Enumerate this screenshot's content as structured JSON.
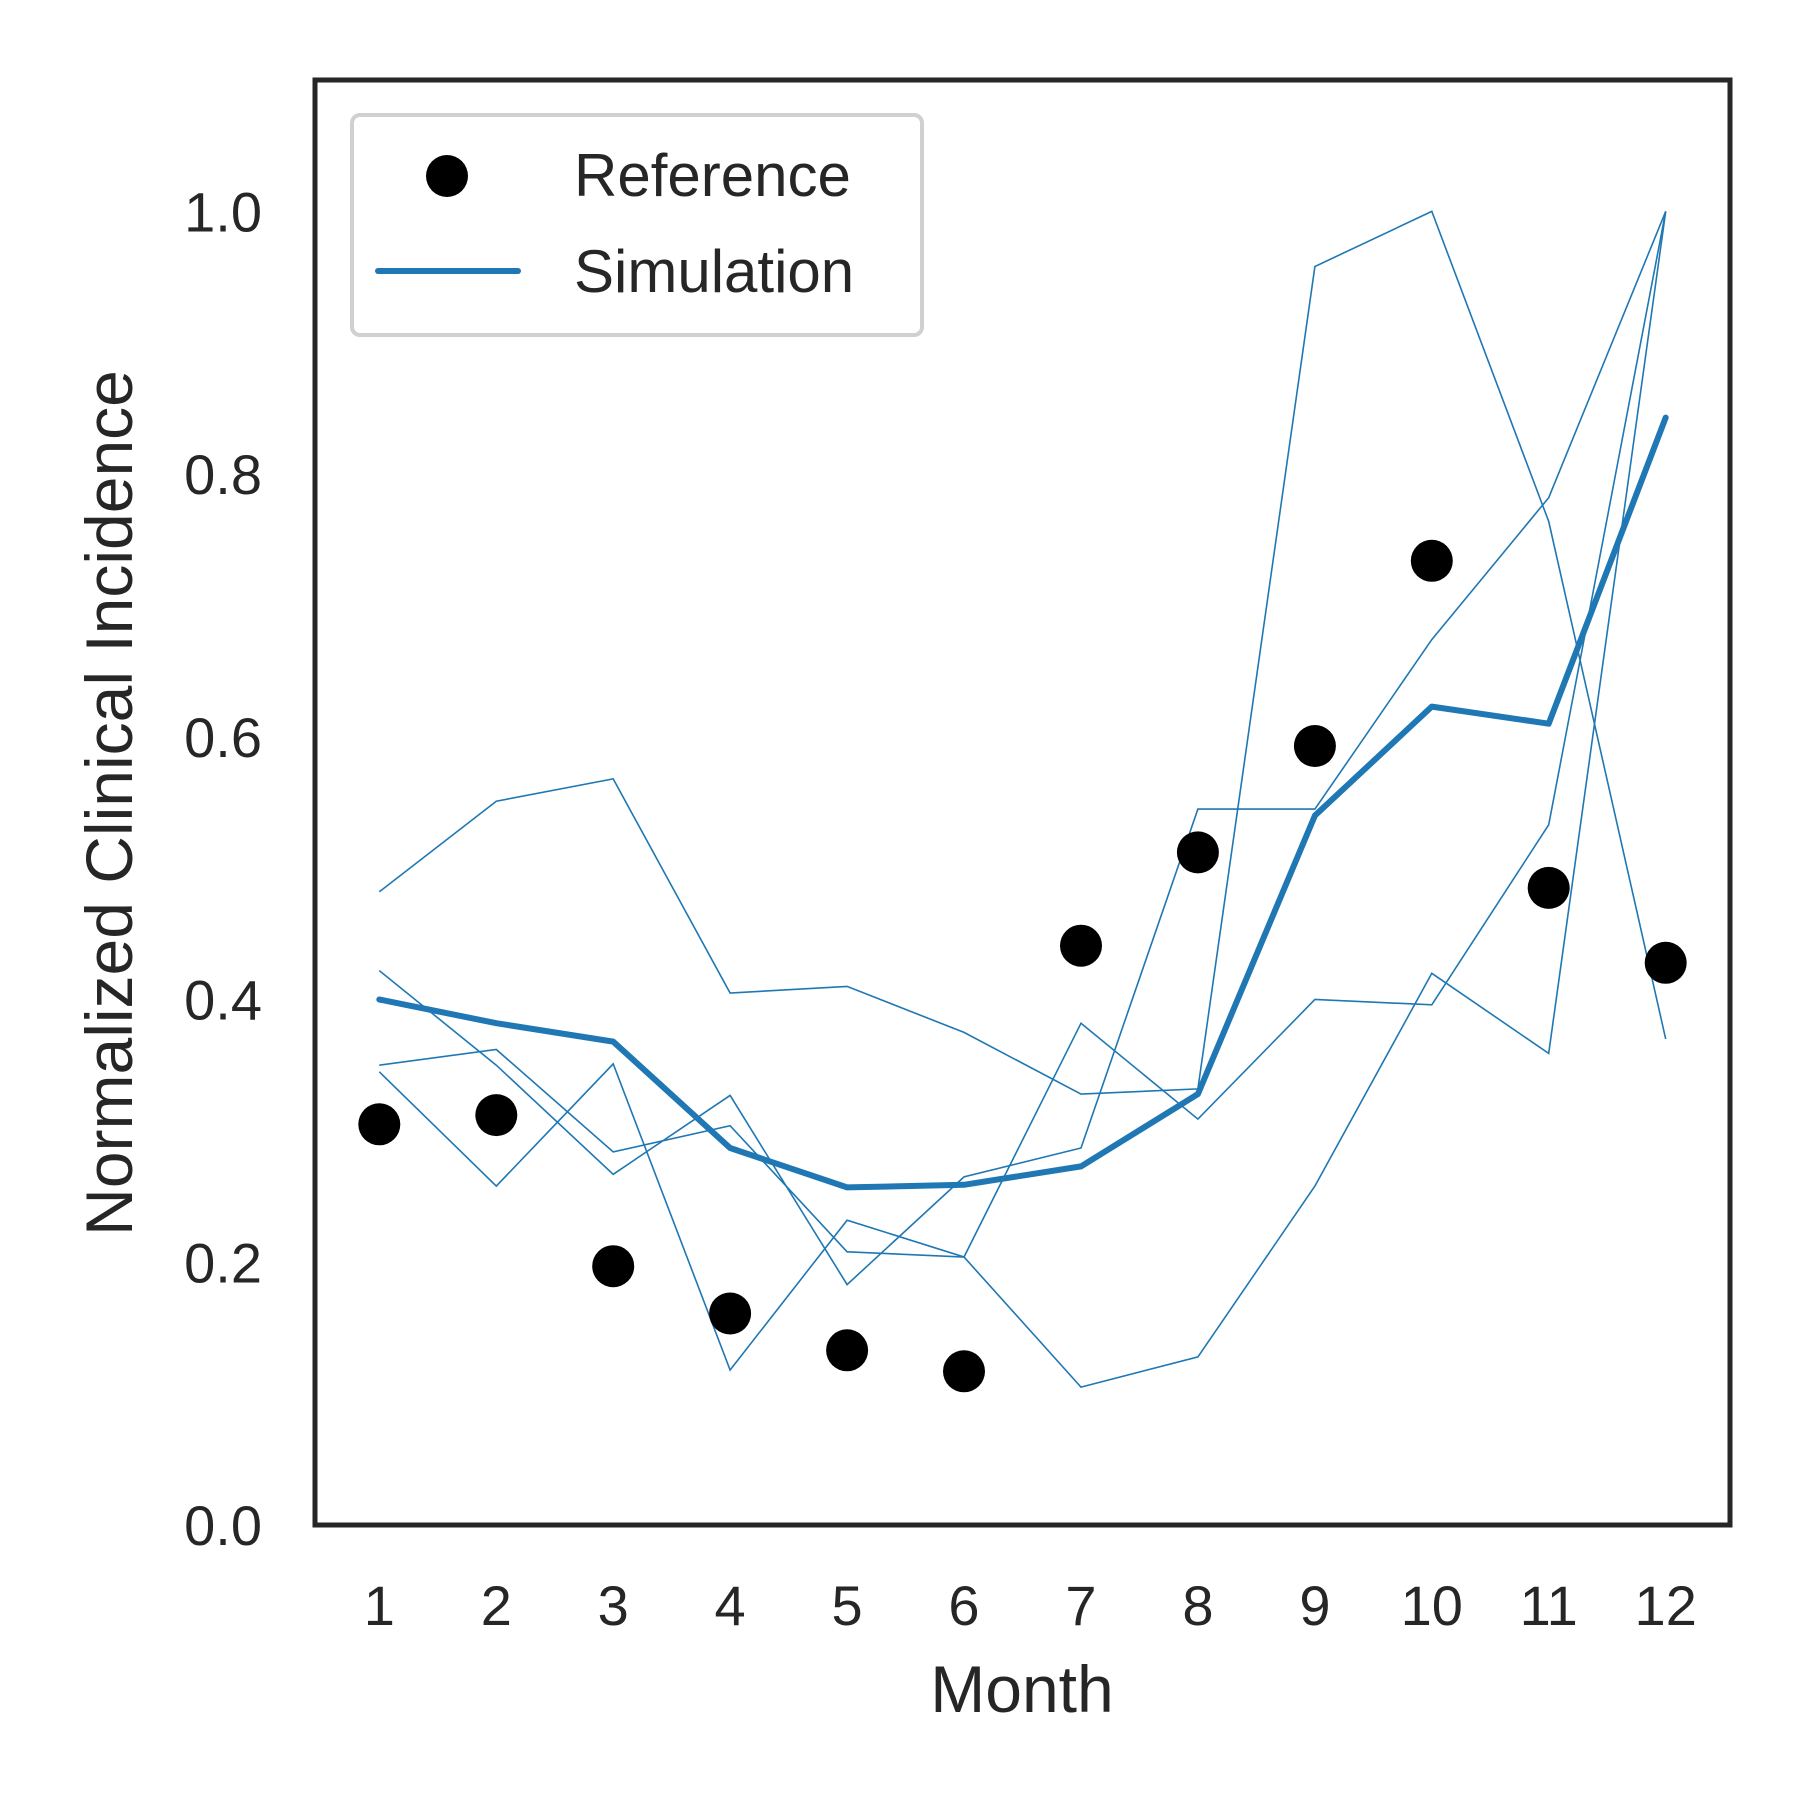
{
  "chart_data": {
    "type": "line",
    "xlabel": "Month",
    "ylabel": "Normalized Clinical Incidence",
    "x": [
      1,
      2,
      3,
      4,
      5,
      6,
      7,
      8,
      9,
      10,
      11,
      12
    ],
    "xlim": [
      0.45,
      12.55
    ],
    "ylim": [
      0,
      1.1
    ],
    "xticks": [
      "1",
      "2",
      "3",
      "4",
      "5",
      "6",
      "7",
      "8",
      "9",
      "10",
      "11",
      "12"
    ],
    "yticks": [
      "0.0",
      "0.2",
      "0.4",
      "0.6",
      "0.8",
      "1.0"
    ],
    "grid": false,
    "legend": {
      "position": "top-left",
      "entries": [
        {
          "label": "Reference",
          "marker": "circle",
          "color": "#000000"
        },
        {
          "label": "Simulation",
          "marker": "line",
          "color": "#1f77b4"
        }
      ]
    },
    "reference": {
      "name": "Reference",
      "color": "#000000",
      "values": [
        0.305,
        0.312,
        0.197,
        0.161,
        0.133,
        0.117,
        0.441,
        0.512,
        0.593,
        0.734,
        0.485,
        0.428
      ]
    },
    "simulation_mean": {
      "name": "Simulation",
      "color": "#1f77b4",
      "values": [
        0.4,
        0.382,
        0.368,
        0.287,
        0.257,
        0.259,
        0.273,
        0.328,
        0.54,
        0.623,
        0.61,
        0.843
      ]
    },
    "simulation_runs": [
      {
        "values": [
          0.482,
          0.551,
          0.568,
          0.405,
          0.41,
          0.375,
          0.328,
          0.332,
          0.958,
          1.0,
          0.764,
          0.37
        ]
      },
      {
        "values": [
          0.35,
          0.362,
          0.284,
          0.304,
          0.208,
          0.204,
          0.382,
          0.309,
          0.4,
          0.396,
          0.533,
          1.0
        ]
      },
      {
        "values": [
          0.345,
          0.258,
          0.351,
          0.118,
          0.232,
          0.204,
          0.105,
          0.128,
          0.258,
          0.42,
          0.359,
          1.0
        ]
      },
      {
        "values": [
          0.422,
          0.35,
          0.267,
          0.327,
          0.183,
          0.265,
          0.287,
          0.545,
          0.545,
          0.674,
          0.782,
          1.0
        ]
      }
    ]
  }
}
